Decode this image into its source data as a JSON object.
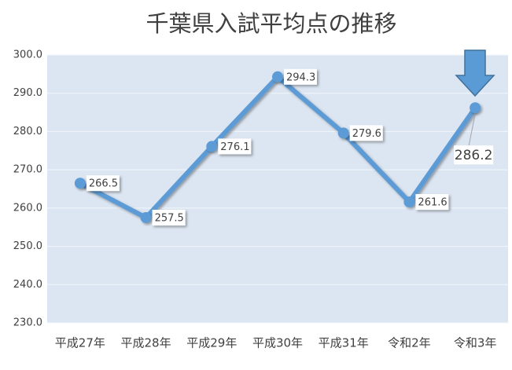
{
  "chart_data": {
    "type": "line",
    "title": "千葉県入試平均点の推移",
    "categories": [
      "平成27年",
      "平成28年",
      "平成29年",
      "平成30年",
      "平成31年",
      "令和2年",
      "令和3年"
    ],
    "values": [
      266.5,
      257.5,
      276.1,
      294.3,
      279.6,
      261.6,
      286.2
    ],
    "color": "#5b9bd5",
    "ylim": [
      230,
      300
    ],
    "yticks": [
      {
        "value": 230,
        "label": "230.0"
      },
      {
        "value": 240,
        "label": "240.0"
      },
      {
        "value": 250,
        "label": "250.0"
      },
      {
        "value": 260,
        "label": "260.0"
      },
      {
        "value": 270,
        "label": "270.0"
      },
      {
        "value": 280,
        "label": "280.0"
      },
      {
        "value": 290,
        "label": "290.0"
      },
      {
        "value": 300,
        "label": "300.0"
      }
    ],
    "grid": true
  }
}
